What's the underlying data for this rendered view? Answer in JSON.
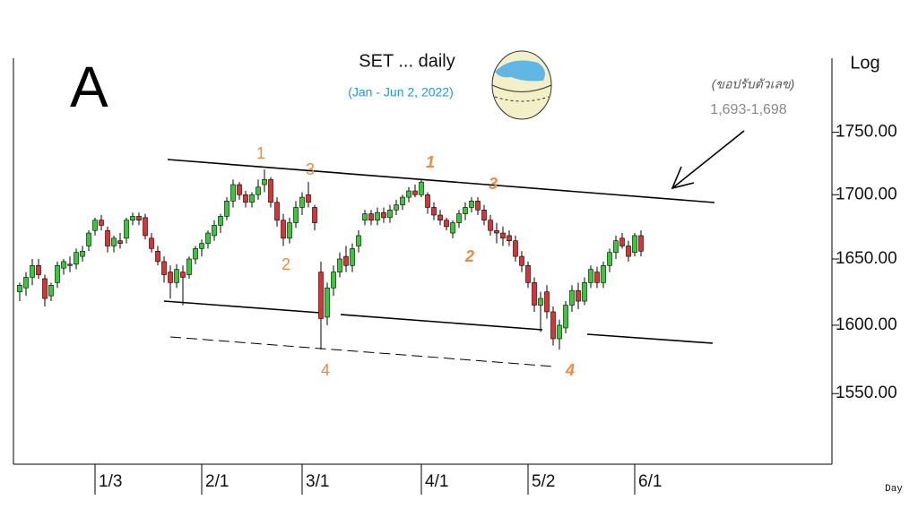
{
  "chart_data": {
    "type": "candlestick",
    "title": "SET ... daily",
    "subtitle": "(Jan - Jun 2, 2022)",
    "panel_label": "A",
    "scale_label": "Log",
    "x_label": "Day",
    "log_scale": true,
    "note": "(ขอปรับตัวเลข)",
    "note_value": "1,693-1,698",
    "wave_labels": [
      "1",
      "3",
      "2",
      "4",
      "1",
      "3",
      "2",
      "4"
    ],
    "up_color": "#33cc33",
    "down_color": "#e03030",
    "ylim": [
      1500,
      1815
    ],
    "yticks": [
      {
        "value": 1550,
        "label": "1550.00"
      },
      {
        "value": 1600,
        "label": "1600.00"
      },
      {
        "value": 1650,
        "label": "1650.00"
      },
      {
        "value": 1700,
        "label": "1700.00"
      },
      {
        "value": 1750,
        "label": "1750.00"
      }
    ],
    "categories": [
      null,
      null,
      null,
      null,
      null,
      null,
      null,
      null,
      null,
      null,
      null,
      null,
      "1/3",
      null,
      null,
      null,
      null,
      null,
      null,
      null,
      null,
      null,
      null,
      null,
      null,
      null,
      null,
      null,
      null,
      "2/1",
      null,
      null,
      null,
      null,
      null,
      null,
      null,
      null,
      null,
      null,
      null,
      null,
      null,
      null,
      null,
      "3/1",
      null,
      null,
      null,
      null,
      null,
      null,
      null,
      null,
      null,
      null,
      null,
      null,
      null,
      null,
      null,
      null,
      null,
      null,
      "4/1",
      null,
      null,
      null,
      null,
      null,
      null,
      null,
      null,
      null,
      null,
      null,
      null,
      null,
      null,
      null,
      null,
      "5/2",
      null,
      null,
      null,
      null,
      null,
      null,
      null,
      null,
      null,
      null,
      null,
      null,
      null,
      null,
      null,
      null,
      "6/1",
      null
    ],
    "open": [
      1625,
      1628,
      1636,
      1645,
      1635,
      1622,
      1632,
      1643,
      1646,
      1646,
      1652,
      1660,
      1672,
      1680,
      1672,
      1660,
      1664,
      1666,
      1680,
      1683,
      1682,
      1666,
      1656,
      1648,
      1640,
      1632,
      1640,
      1638,
      1650,
      1658,
      1662,
      1668,
      1676,
      1683,
      1695,
      1708,
      1700,
      1694,
      1700,
      1708,
      1712,
      1694,
      1680,
      1666,
      1678,
      1690,
      1700,
      1690,
      1640,
      1606,
      1628,
      1640,
      1652,
      1645,
      1660,
      1680,
      1685,
      1680,
      1686,
      1682,
      1688,
      1692,
      1698,
      1703,
      1700,
      1700,
      1690,
      1684,
      1680,
      1670,
      1678,
      1685,
      1690,
      1695,
      1688,
      1680,
      1672,
      1670,
      1668,
      1664,
      1652,
      1645,
      1632,
      1615,
      1625,
      1610,
      1590,
      1598,
      1615,
      1626,
      1618,
      1632,
      1640,
      1632,
      1645,
      1655,
      1666,
      1660,
      1655,
      1668
    ],
    "high": [
      1632,
      1640,
      1650,
      1650,
      1638,
      1632,
      1648,
      1650,
      1652,
      1658,
      1660,
      1672,
      1682,
      1684,
      1675,
      1668,
      1670,
      1682,
      1686,
      1686,
      1685,
      1670,
      1660,
      1652,
      1645,
      1646,
      1645,
      1652,
      1660,
      1665,
      1672,
      1680,
      1685,
      1698,
      1712,
      1710,
      1703,
      1702,
      1712,
      1720,
      1714,
      1698,
      1685,
      1682,
      1695,
      1702,
      1710,
      1692,
      1648,
      1632,
      1645,
      1655,
      1660,
      1662,
      1672,
      1688,
      1688,
      1690,
      1690,
      1692,
      1696,
      1700,
      1706,
      1708,
      1712,
      1702,
      1694,
      1688,
      1682,
      1680,
      1688,
      1694,
      1698,
      1698,
      1692,
      1684,
      1678,
      1675,
      1672,
      1668,
      1656,
      1648,
      1636,
      1625,
      1630,
      1614,
      1604,
      1618,
      1630,
      1632,
      1636,
      1645,
      1644,
      1648,
      1658,
      1668,
      1670,
      1664,
      1670,
      1672
    ],
    "low": [
      1618,
      1622,
      1630,
      1635,
      1614,
      1618,
      1628,
      1638,
      1640,
      1642,
      1648,
      1656,
      1668,
      1672,
      1655,
      1655,
      1658,
      1662,
      1676,
      1676,
      1665,
      1655,
      1645,
      1632,
      1620,
      1628,
      1615,
      1635,
      1646,
      1652,
      1658,
      1664,
      1670,
      1680,
      1690,
      1696,
      1690,
      1690,
      1696,
      1702,
      1690,
      1675,
      1660,
      1662,
      1674,
      1684,
      1690,
      1672,
      1582,
      1600,
      1622,
      1636,
      1640,
      1640,
      1655,
      1676,
      1676,
      1676,
      1678,
      1678,
      1684,
      1688,
      1694,
      1698,
      1698,
      1685,
      1680,
      1676,
      1672,
      1666,
      1674,
      1680,
      1686,
      1684,
      1676,
      1668,
      1662,
      1660,
      1660,
      1648,
      1640,
      1628,
      1610,
      1595,
      1605,
      1585,
      1582,
      1594,
      1610,
      1612,
      1615,
      1628,
      1628,
      1628,
      1640,
      1650,
      1658,
      1648,
      1652,
      1652
    ],
    "close": [
      1630,
      1636,
      1645,
      1638,
      1620,
      1630,
      1645,
      1648,
      1645,
      1655,
      1656,
      1670,
      1680,
      1676,
      1660,
      1666,
      1662,
      1680,
      1683,
      1680,
      1668,
      1658,
      1648,
      1638,
      1632,
      1642,
      1636,
      1650,
      1658,
      1662,
      1670,
      1676,
      1683,
      1695,
      1708,
      1700,
      1694,
      1700,
      1706,
      1712,
      1694,
      1680,
      1666,
      1678,
      1690,
      1698,
      1694,
      1678,
      1605,
      1628,
      1640,
      1650,
      1645,
      1658,
      1668,
      1685,
      1680,
      1686,
      1682,
      1688,
      1692,
      1698,
      1703,
      1700,
      1710,
      1690,
      1684,
      1680,
      1675,
      1678,
      1685,
      1690,
      1695,
      1688,
      1680,
      1672,
      1670,
      1666,
      1664,
      1652,
      1645,
      1632,
      1615,
      1620,
      1610,
      1590,
      1600,
      1615,
      1626,
      1618,
      1632,
      1642,
      1632,
      1645,
      1655,
      1664,
      1660,
      1652,
      1668,
      1656
    ]
  }
}
